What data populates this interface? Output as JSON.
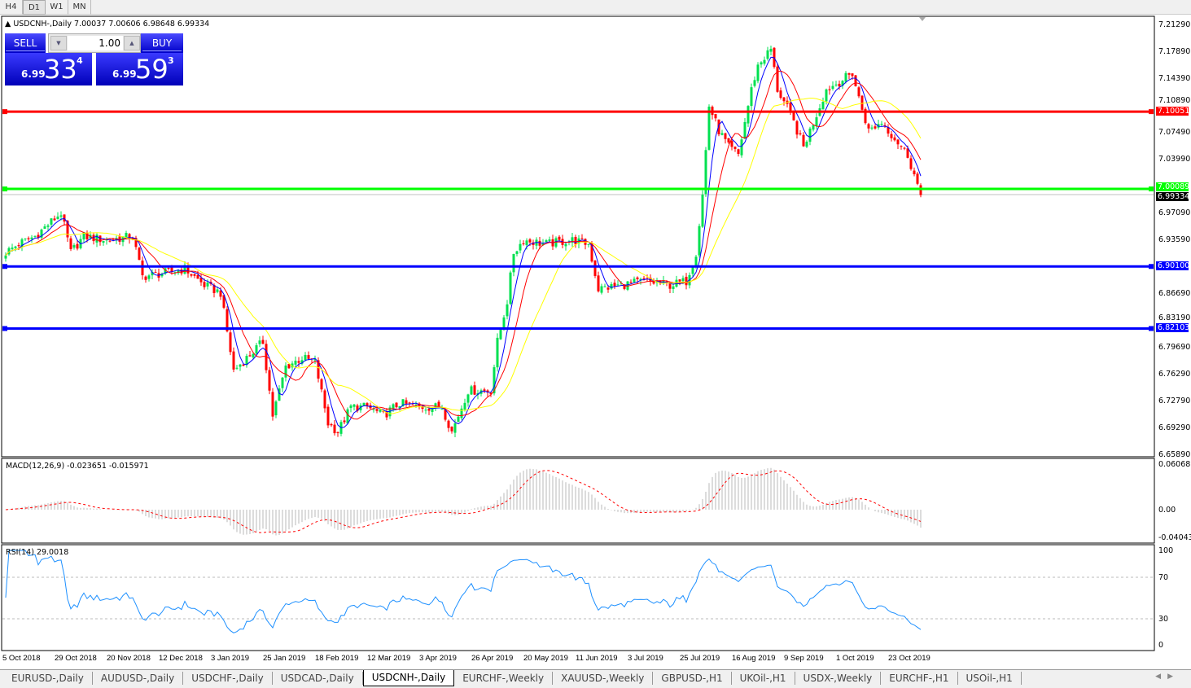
{
  "toolbar": {
    "timeframes": [
      "H4",
      "D1",
      "W1",
      "MN"
    ],
    "active": "D1"
  },
  "header": {
    "symbol_info": "USDCNH-,Daily  7.00037 7.00606 6.98648 6.99334"
  },
  "trade_panel": {
    "sell_label": "SELL",
    "buy_label": "BUY",
    "volume": "1.00",
    "sell_price": {
      "prefix": "6.99",
      "big": "33",
      "sup": "4"
    },
    "buy_price": {
      "prefix": "6.99",
      "big": "59",
      "sup": "3"
    }
  },
  "price_axis": {
    "ticks": [
      "7.21290",
      "7.17890",
      "7.14390",
      "7.10890",
      "7.07490",
      "7.03990",
      "6.97090",
      "6.93590",
      "6.86690",
      "6.83190",
      "6.79690",
      "6.76290",
      "6.72790",
      "6.69290",
      "6.65890"
    ]
  },
  "levels": [
    {
      "price": "7.10051",
      "color": "#ff0000"
    },
    {
      "price": "7.00089",
      "color": "#00ff00"
    },
    {
      "price": "6.90100",
      "color": "#0000ff"
    },
    {
      "price": "6.82103",
      "color": "#0000ff"
    }
  ],
  "bid_label": "6.99334",
  "macd": {
    "label": "MACD(12,26,9) -0.023651 -0.015971",
    "axis": [
      "0.060687",
      "0.00",
      "-0.040432"
    ]
  },
  "rsi": {
    "label": "RSI(14) 29.0018",
    "axis": [
      "100",
      "70",
      "30",
      "0"
    ]
  },
  "time_axis": [
    "5 Oct 2018",
    "29 Oct 2018",
    "20 Nov 2018",
    "12 Dec 2018",
    "3 Jan 2019",
    "25 Jan 2019",
    "18 Feb 2019",
    "12 Mar 2019",
    "3 Apr 2019",
    "26 Apr 2019",
    "20 May 2019",
    "11 Jun 2019",
    "3 Jul 2019",
    "25 Jul 2019",
    "16 Aug 2019",
    "9 Sep 2019",
    "1 Oct 2019",
    "23 Oct 2019"
  ],
  "tabs": [
    "EURUSD-,Daily",
    "AUDUSD-,Daily",
    "USDCHF-,Daily",
    "USDCAD-,Daily",
    "USDCNH-,Daily",
    "EURCHF-,Weekly",
    "XAUUSD-,Weekly",
    "GBPUSD-,H1",
    "UKOil-,H1",
    "USDX-,Weekly",
    "EURCHF-,H1",
    "USOil-,H1"
  ],
  "active_tab": "USDCNH-,Daily",
  "colors": {
    "bull": "#00e050",
    "bear": "#ff0000",
    "ma_fast": "#0000ff",
    "ma_mid": "#ff0000",
    "ma_slow": "#ffff00"
  },
  "chart_data": {
    "type": "candlestick",
    "symbol": "USDCNH",
    "timeframe": "Daily",
    "ylim": [
      6.6589,
      7.2129
    ],
    "approx_close_path": [
      [
        0,
        6.919
      ],
      [
        4,
        6.93
      ],
      [
        9,
        6.94
      ],
      [
        17,
        6.97
      ],
      [
        20,
        6.919
      ],
      [
        24,
        6.94
      ],
      [
        31,
        6.935
      ],
      [
        39,
        6.94
      ],
      [
        42,
        6.888
      ],
      [
        49,
        6.893
      ],
      [
        55,
        6.898
      ],
      [
        61,
        6.877
      ],
      [
        66,
        6.867
      ],
      [
        70,
        6.767
      ],
      [
        74,
        6.783
      ],
      [
        79,
        6.804
      ],
      [
        82,
        6.709
      ],
      [
        86,
        6.772
      ],
      [
        91,
        6.783
      ],
      [
        95,
        6.778
      ],
      [
        99,
        6.699
      ],
      [
        102,
        6.688
      ],
      [
        106,
        6.72
      ],
      [
        111,
        6.72
      ],
      [
        116,
        6.709
      ],
      [
        121,
        6.725
      ],
      [
        126,
        6.72
      ],
      [
        134,
        6.72
      ],
      [
        137,
        6.688
      ],
      [
        142,
        6.741
      ],
      [
        149,
        6.741
      ],
      [
        151,
        6.804
      ],
      [
        154,
        6.856
      ],
      [
        156,
        6.919
      ],
      [
        159,
        6.935
      ],
      [
        166,
        6.93
      ],
      [
        174,
        6.935
      ],
      [
        179,
        6.93
      ],
      [
        182,
        6.872
      ],
      [
        189,
        6.877
      ],
      [
        196,
        6.882
      ],
      [
        204,
        6.877
      ],
      [
        209,
        6.882
      ],
      [
        212,
        6.919
      ],
      [
        214,
        6.993
      ],
      [
        216,
        7.108
      ],
      [
        219,
        7.076
      ],
      [
        222,
        7.055
      ],
      [
        225,
        7.045
      ],
      [
        229,
        7.129
      ],
      [
        231,
        7.16
      ],
      [
        235,
        7.181
      ],
      [
        237,
        7.129
      ],
      [
        241,
        7.097
      ],
      [
        245,
        7.055
      ],
      [
        249,
        7.097
      ],
      [
        252,
        7.129
      ],
      [
        256,
        7.139
      ],
      [
        260,
        7.15
      ],
      [
        262,
        7.118
      ],
      [
        265,
        7.076
      ],
      [
        269,
        7.087
      ],
      [
        274,
        7.061
      ],
      [
        277,
        7.045
      ],
      [
        281,
        6.993
      ]
    ]
  }
}
